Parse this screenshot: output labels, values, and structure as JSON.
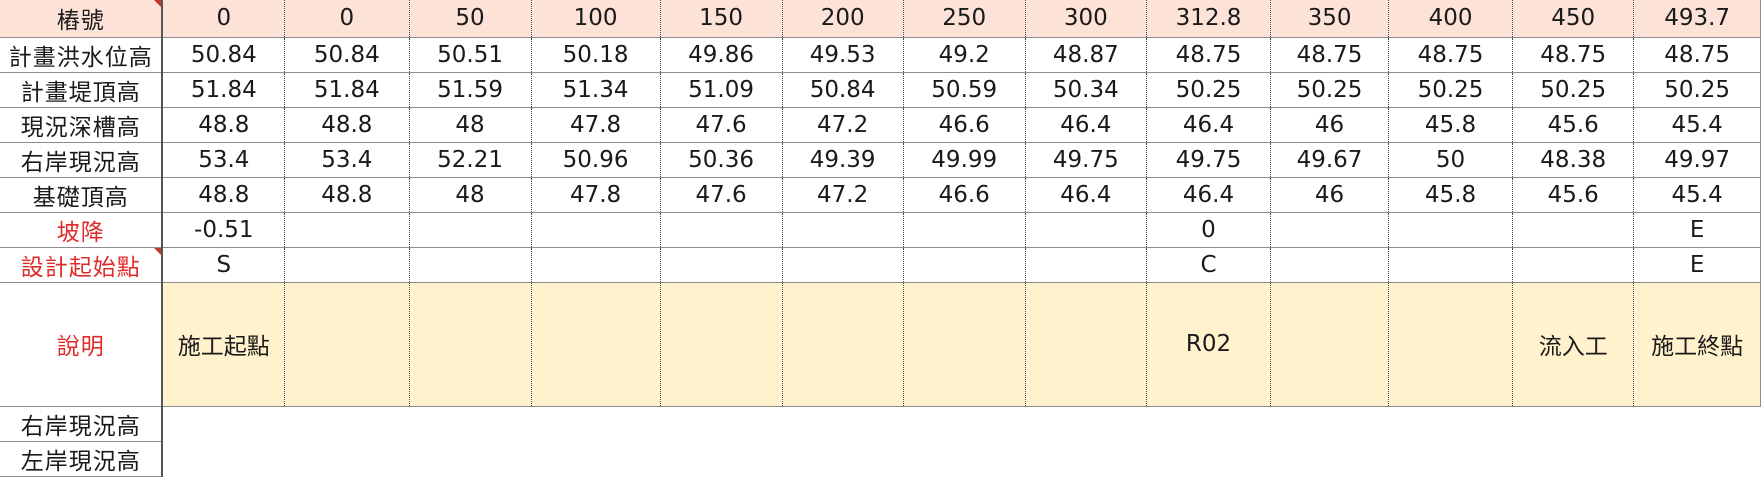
{
  "header": {
    "label": "樁號",
    "values": [
      "0",
      "0",
      "50",
      "100",
      "150",
      "200",
      "250",
      "300",
      "312.8",
      "350",
      "400",
      "450",
      "493.7"
    ]
  },
  "rows": [
    {
      "label": "計畫洪水位高",
      "values": [
        "50.84",
        "50.84",
        "50.51",
        "50.18",
        "49.86",
        "49.53",
        "49.2",
        "48.87",
        "48.75",
        "48.75",
        "48.75",
        "48.75",
        "48.75"
      ]
    },
    {
      "label": "計畫堤頂高",
      "values": [
        "51.84",
        "51.84",
        "51.59",
        "51.34",
        "51.09",
        "50.84",
        "50.59",
        "50.34",
        "50.25",
        "50.25",
        "50.25",
        "50.25",
        "50.25"
      ]
    },
    {
      "label": "現況深槽高",
      "values": [
        "48.8",
        "48.8",
        "48",
        "47.8",
        "47.6",
        "47.2",
        "46.6",
        "46.4",
        "46.4",
        "46",
        "45.8",
        "45.6",
        "45.4"
      ]
    },
    {
      "label": "右岸現況高",
      "values": [
        "53.4",
        "53.4",
        "52.21",
        "50.96",
        "50.36",
        "49.39",
        "49.99",
        "49.75",
        "49.75",
        "49.67",
        "50",
        "48.38",
        "49.97"
      ]
    },
    {
      "label": "基礎頂高",
      "values": [
        "48.8",
        "48.8",
        "48",
        "47.8",
        "47.6",
        "47.2",
        "46.6",
        "46.4",
        "46.4",
        "46",
        "45.8",
        "45.6",
        "45.4"
      ]
    },
    {
      "label": "坡降",
      "values": [
        "-0.51",
        "",
        "",
        "",
        "",
        "",
        "",
        "",
        "0",
        "",
        "",
        "",
        "E"
      ]
    },
    {
      "label": "設計起始點",
      "values": [
        "S",
        "",
        "",
        "",
        "",
        "",
        "",
        "",
        "C",
        "",
        "",
        "",
        "E"
      ]
    }
  ],
  "notes": {
    "label": "說明",
    "values": [
      "施工起點",
      "",
      "",
      "",
      "",
      "",
      "",
      "",
      "R02",
      "",
      "",
      "流入工",
      "施工終點"
    ]
  },
  "tail_rows": [
    {
      "label": "右岸現況高"
    },
    {
      "label": "左岸現況高"
    }
  ],
  "colors": {
    "header_fill": "#fce2d7",
    "notes_fill": "#fff2cc",
    "red_label": "#e02b2b"
  }
}
